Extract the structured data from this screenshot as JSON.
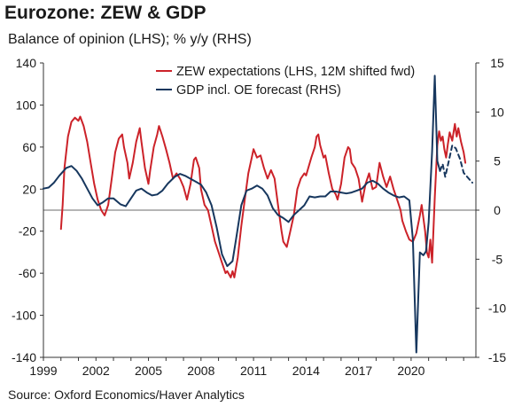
{
  "chart_data": {
    "type": "line",
    "title": "Eurozone: ZEW & GDP",
    "subtitle": "Balance of opinion (LHS); % y/y (RHS)",
    "source": "Source: Oxford Economics/Haver Analytics",
    "x_ticks": [
      1999,
      2002,
      2005,
      2008,
      2011,
      2014,
      2017,
      2020
    ],
    "x_range": [
      1999,
      2023.7
    ],
    "y_left": {
      "ticks": [
        140,
        100,
        60,
        20,
        -20,
        -60,
        -100,
        -140
      ],
      "range": [
        -140,
        140
      ]
    },
    "y_right": {
      "ticks": [
        15,
        10,
        5,
        0,
        -5,
        -10,
        -15
      ],
      "range": [
        -15,
        15
      ]
    },
    "legend_position": "top-right",
    "series": [
      {
        "name": "ZEW expectations (LHS, 12M shifted fwd)",
        "axis": "left",
        "color": "#cc2229",
        "points": [
          [
            2000.0,
            -18
          ],
          [
            2000.1,
            5
          ],
          [
            2000.2,
            40
          ],
          [
            2000.4,
            70
          ],
          [
            2000.6,
            84
          ],
          [
            2000.8,
            88
          ],
          [
            2001.0,
            85
          ],
          [
            2001.1,
            89
          ],
          [
            2001.3,
            80
          ],
          [
            2001.5,
            65
          ],
          [
            2001.7,
            45
          ],
          [
            2001.9,
            25
          ],
          [
            2002.1,
            10
          ],
          [
            2002.3,
            0
          ],
          [
            2002.5,
            -5
          ],
          [
            2002.7,
            5
          ],
          [
            2002.9,
            30
          ],
          [
            2003.1,
            55
          ],
          [
            2003.3,
            68
          ],
          [
            2003.5,
            72
          ],
          [
            2003.6,
            60
          ],
          [
            2003.8,
            45
          ],
          [
            2003.9,
            30
          ],
          [
            2004.1,
            45
          ],
          [
            2004.3,
            65
          ],
          [
            2004.5,
            78
          ],
          [
            2004.6,
            65
          ],
          [
            2004.8,
            40
          ],
          [
            2005.0,
            25
          ],
          [
            2005.1,
            38
          ],
          [
            2005.3,
            60
          ],
          [
            2005.5,
            72
          ],
          [
            2005.6,
            80
          ],
          [
            2005.8,
            70
          ],
          [
            2006.0,
            58
          ],
          [
            2006.2,
            45
          ],
          [
            2006.4,
            30
          ],
          [
            2006.6,
            35
          ],
          [
            2006.8,
            30
          ],
          [
            2007.0,
            22
          ],
          [
            2007.2,
            10
          ],
          [
            2007.4,
            25
          ],
          [
            2007.6,
            48
          ],
          [
            2007.7,
            50
          ],
          [
            2007.9,
            40
          ],
          [
            2008.0,
            20
          ],
          [
            2008.2,
            5
          ],
          [
            2008.4,
            0
          ],
          [
            2008.6,
            -15
          ],
          [
            2008.8,
            -30
          ],
          [
            2009.0,
            -40
          ],
          [
            2009.2,
            -50
          ],
          [
            2009.4,
            -60
          ],
          [
            2009.5,
            -58
          ],
          [
            2009.7,
            -64
          ],
          [
            2009.8,
            -58
          ],
          [
            2009.9,
            -64
          ],
          [
            2010.1,
            -45
          ],
          [
            2010.3,
            -15
          ],
          [
            2010.5,
            10
          ],
          [
            2010.7,
            35
          ],
          [
            2010.9,
            50
          ],
          [
            2011.0,
            58
          ],
          [
            2011.2,
            50
          ],
          [
            2011.4,
            52
          ],
          [
            2011.6,
            40
          ],
          [
            2011.8,
            30
          ],
          [
            2012.0,
            38
          ],
          [
            2012.2,
            30
          ],
          [
            2012.4,
            5
          ],
          [
            2012.6,
            -20
          ],
          [
            2012.7,
            -30
          ],
          [
            2012.9,
            -35
          ],
          [
            2013.1,
            -20
          ],
          [
            2013.3,
            -5
          ],
          [
            2013.5,
            20
          ],
          [
            2013.7,
            30
          ],
          [
            2013.9,
            35
          ],
          [
            2014.0,
            33
          ],
          [
            2014.3,
            50
          ],
          [
            2014.5,
            60
          ],
          [
            2014.6,
            70
          ],
          [
            2014.7,
            72
          ],
          [
            2014.8,
            62
          ],
          [
            2015.0,
            50
          ],
          [
            2015.1,
            52
          ],
          [
            2015.3,
            35
          ],
          [
            2015.5,
            20
          ],
          [
            2015.7,
            15
          ],
          [
            2015.8,
            10
          ],
          [
            2016.0,
            25
          ],
          [
            2016.2,
            50
          ],
          [
            2016.4,
            60
          ],
          [
            2016.5,
            58
          ],
          [
            2016.6,
            45
          ],
          [
            2016.8,
            40
          ],
          [
            2017.0,
            30
          ],
          [
            2017.2,
            8
          ],
          [
            2017.4,
            25
          ],
          [
            2017.6,
            35
          ],
          [
            2017.8,
            20
          ],
          [
            2018.0,
            22
          ],
          [
            2018.2,
            45
          ],
          [
            2018.4,
            32
          ],
          [
            2018.6,
            22
          ],
          [
            2018.8,
            32
          ],
          [
            2019.0,
            20
          ],
          [
            2019.2,
            10
          ],
          [
            2019.4,
            0
          ],
          [
            2019.5,
            -10
          ],
          [
            2019.7,
            -20
          ],
          [
            2019.9,
            -28
          ],
          [
            2020.1,
            -30
          ],
          [
            2020.3,
            -22
          ],
          [
            2020.5,
            -5
          ],
          [
            2020.6,
            5
          ],
          [
            2020.8,
            -20
          ],
          [
            2020.9,
            -40
          ],
          [
            2021.0,
            -45
          ],
          [
            2021.1,
            -28
          ],
          [
            2021.2,
            -50
          ],
          [
            2021.35,
            12
          ],
          [
            2021.5,
            62
          ],
          [
            2021.6,
            75
          ],
          [
            2021.7,
            66
          ],
          [
            2021.8,
            70
          ],
          [
            2021.9,
            58
          ],
          [
            2022.0,
            50
          ],
          [
            2022.1,
            63
          ],
          [
            2022.2,
            74
          ],
          [
            2022.35,
            66
          ],
          [
            2022.5,
            82
          ],
          [
            2022.6,
            70
          ],
          [
            2022.7,
            78
          ],
          [
            2022.85,
            65
          ],
          [
            2023.0,
            55
          ],
          [
            2023.1,
            45
          ]
        ]
      },
      {
        "name": "GDP incl. OE forecast (RHS)",
        "axis": "right",
        "color": "#17375e",
        "points": [
          [
            1999.0,
            2.2
          ],
          [
            1999.3,
            2.3
          ],
          [
            1999.6,
            2.8
          ],
          [
            1999.9,
            3.5
          ],
          [
            2000.3,
            4.3
          ],
          [
            2000.6,
            4.5
          ],
          [
            2000.9,
            4.0
          ],
          [
            2001.2,
            3.2
          ],
          [
            2001.5,
            2.2
          ],
          [
            2001.8,
            1.2
          ],
          [
            2002.1,
            0.5
          ],
          [
            2002.4,
            0.8
          ],
          [
            2002.7,
            1.2
          ],
          [
            2003.0,
            1.2
          ],
          [
            2003.4,
            0.6
          ],
          [
            2003.7,
            0.4
          ],
          [
            2004.0,
            1.2
          ],
          [
            2004.3,
            2.0
          ],
          [
            2004.6,
            2.2
          ],
          [
            2004.9,
            1.8
          ],
          [
            2005.2,
            1.5
          ],
          [
            2005.5,
            1.6
          ],
          [
            2005.8,
            2.0
          ],
          [
            2006.1,
            2.7
          ],
          [
            2006.5,
            3.4
          ],
          [
            2006.8,
            3.7
          ],
          [
            2007.1,
            3.5
          ],
          [
            2007.4,
            3.2
          ],
          [
            2007.7,
            2.9
          ],
          [
            2008.0,
            2.6
          ],
          [
            2008.3,
            1.8
          ],
          [
            2008.6,
            0.5
          ],
          [
            2008.9,
            -1.8
          ],
          [
            2009.2,
            -4.5
          ],
          [
            2009.5,
            -5.7
          ],
          [
            2009.8,
            -5.2
          ],
          [
            2010.0,
            -3.0
          ],
          [
            2010.3,
            0.5
          ],
          [
            2010.6,
            2.0
          ],
          [
            2010.9,
            2.2
          ],
          [
            2011.2,
            2.5
          ],
          [
            2011.5,
            2.2
          ],
          [
            2011.8,
            1.5
          ],
          [
            2012.1,
            0.2
          ],
          [
            2012.4,
            -0.5
          ],
          [
            2012.7,
            -0.8
          ],
          [
            2013.0,
            -1.2
          ],
          [
            2013.3,
            -0.5
          ],
          [
            2013.6,
            0.0
          ],
          [
            2013.9,
            0.5
          ],
          [
            2014.2,
            1.4
          ],
          [
            2014.5,
            1.3
          ],
          [
            2014.8,
            1.4
          ],
          [
            2015.1,
            1.4
          ],
          [
            2015.4,
            1.9
          ],
          [
            2015.7,
            1.9
          ],
          [
            2016.0,
            1.8
          ],
          [
            2016.3,
            1.7
          ],
          [
            2016.6,
            1.8
          ],
          [
            2016.9,
            2.0
          ],
          [
            2017.2,
            2.2
          ],
          [
            2017.5,
            2.8
          ],
          [
            2017.8,
            3.0
          ],
          [
            2018.1,
            2.7
          ],
          [
            2018.4,
            2.2
          ],
          [
            2018.7,
            1.8
          ],
          [
            2019.0,
            1.5
          ],
          [
            2019.3,
            1.3
          ],
          [
            2019.6,
            1.4
          ],
          [
            2019.9,
            1.0
          ],
          [
            2020.1,
            -3.0
          ],
          [
            2020.3,
            -14.5
          ],
          [
            2020.5,
            -4.3
          ],
          [
            2020.7,
            -4.6
          ],
          [
            2020.85,
            -4.2
          ],
          [
            2021.0,
            -1.2
          ],
          [
            2021.2,
            6.0
          ],
          [
            2021.35,
            13.7
          ],
          [
            2021.5,
            5.0
          ],
          [
            2021.65,
            4.0
          ]
        ]
      },
      {
        "name": "",
        "axis": "right",
        "color": "#17375e",
        "dashed": true,
        "points": [
          [
            2021.65,
            4.0
          ],
          [
            2021.8,
            4.7
          ],
          [
            2021.95,
            3.4
          ],
          [
            2022.15,
            5.0
          ],
          [
            2022.35,
            6.6
          ],
          [
            2022.55,
            6.3
          ],
          [
            2022.8,
            5.2
          ],
          [
            2023.0,
            3.8
          ],
          [
            2023.25,
            3.3
          ],
          [
            2023.5,
            2.8
          ]
        ]
      }
    ]
  }
}
